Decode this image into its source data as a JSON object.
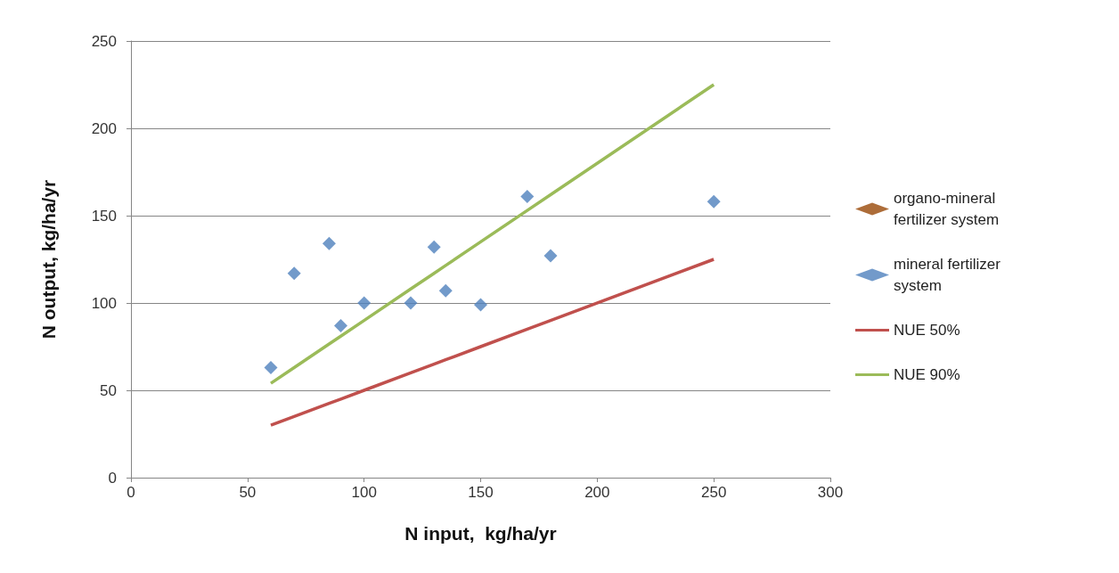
{
  "chart_data": {
    "type": "scatter",
    "xlabel": "N input,  kg/ha/yr",
    "ylabel": "N output, kg/ha/yr",
    "xlim": [
      0,
      300
    ],
    "xticks": [
      0,
      50,
      100,
      150,
      200,
      250,
      300
    ],
    "ylim": [
      0,
      250
    ],
    "yticks": [
      0,
      50,
      100,
      150,
      200,
      250
    ],
    "grid": "y",
    "legend": "right",
    "series": [
      {
        "name": "organo-mineral fertilizer system",
        "type": "scatter",
        "marker": "diamond",
        "color": "#984807"
      },
      {
        "name": "mineral fertilizer system",
        "type": "scatter",
        "marker": "diamond",
        "color": "#4f81bd",
        "x": [
          60,
          70,
          85,
          90,
          100,
          120,
          130,
          135,
          150,
          170,
          180,
          250
        ],
        "values": [
          63,
          117,
          134,
          87,
          100,
          100,
          132,
          107,
          99,
          161,
          127,
          158
        ]
      },
      {
        "name": "NUE 50%",
        "type": "line",
        "marker": "none",
        "color": "#c0504d",
        "x": [
          60,
          70,
          85,
          90,
          100,
          120,
          130,
          135,
          150,
          170,
          180,
          250
        ],
        "values": [
          30,
          35,
          42.5,
          45,
          50,
          60,
          65,
          67.5,
          75,
          85,
          90,
          125
        ]
      },
      {
        "name": "NUE 90%",
        "type": "line",
        "marker": "none",
        "color": "#9bbb59",
        "x": [
          60,
          70,
          85,
          90,
          100,
          120,
          130,
          135,
          150,
          170,
          180,
          250
        ],
        "values": [
          54,
          63,
          76.5,
          81,
          90,
          108,
          117,
          121.5,
          135,
          153,
          162,
          225
        ]
      }
    ]
  }
}
